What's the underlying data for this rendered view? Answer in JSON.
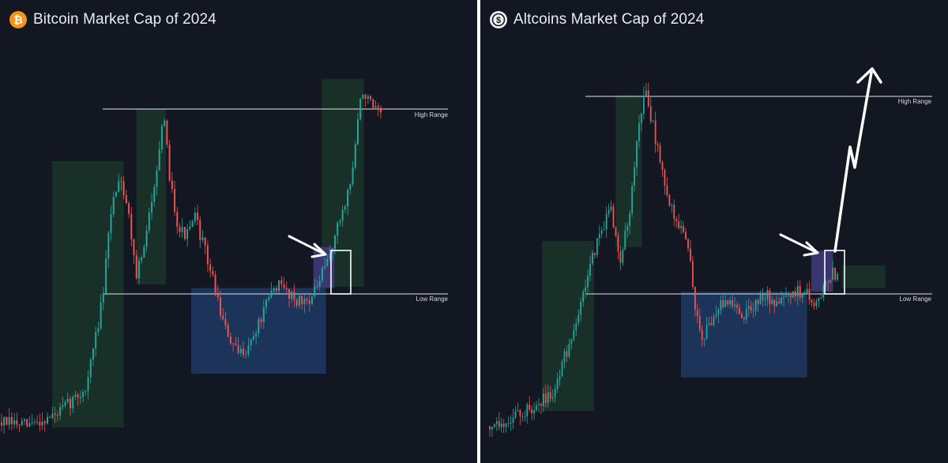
{
  "colors": {
    "background": "#131722",
    "bullish_candle": "#26a69a",
    "bearish_candle": "#ef5350",
    "impulse_zone": "#1c3a2c",
    "accumulation_zone": "#1f3a63",
    "breakout_box": "#3e3a78",
    "range_line": "#e0e3ea",
    "annotation": "#ffffff",
    "bitcoin_icon": "#f7931a"
  },
  "panels": [
    {
      "title": "Bitcoin Market Cap of 2024",
      "icon": "bitcoin-icon",
      "annotations": {
        "high_range_label": "High Range",
        "low_range_label": "Low Range"
      }
    },
    {
      "title": "Altcoins Market Cap of 2024",
      "icon": "altcoin-icon",
      "annotations": {
        "high_range_label": "High Range",
        "low_range_label": "Low Range"
      }
    }
  ],
  "chart_data": [
    {
      "type": "candlestick",
      "title": "Bitcoin Market Cap of 2024",
      "xlabel": "",
      "ylabel": "",
      "y_scale": "relative (no axis printed)",
      "grid": false,
      "path_shape": [
        [
          0,
          0.05
        ],
        [
          0.06,
          0.04
        ],
        [
          0.13,
          0.07
        ],
        [
          0.2,
          0.14
        ],
        [
          0.24,
          0.38
        ],
        [
          0.26,
          0.62
        ],
        [
          0.28,
          0.72
        ],
        [
          0.3,
          0.62
        ],
        [
          0.32,
          0.45
        ],
        [
          0.34,
          0.52
        ],
        [
          0.36,
          0.68
        ],
        [
          0.385,
          0.86
        ],
        [
          0.4,
          0.7
        ],
        [
          0.42,
          0.57
        ],
        [
          0.44,
          0.55
        ],
        [
          0.46,
          0.6
        ],
        [
          0.48,
          0.52
        ],
        [
          0.5,
          0.44
        ],
        [
          0.53,
          0.3
        ],
        [
          0.56,
          0.23
        ],
        [
          0.59,
          0.26
        ],
        [
          0.62,
          0.34
        ],
        [
          0.65,
          0.42
        ],
        [
          0.68,
          0.4
        ],
        [
          0.71,
          0.37
        ],
        [
          0.74,
          0.39
        ],
        [
          0.77,
          0.47
        ],
        [
          0.8,
          0.58
        ],
        [
          0.83,
          0.7
        ],
        [
          0.85,
          0.9
        ],
        [
          0.86,
          0.94
        ],
        [
          0.88,
          0.89
        ],
        [
          0.9,
          0.87
        ]
      ],
      "high_range": 0.84,
      "low_range": 0.41,
      "zones": {
        "impulse": [
          [
            0.12,
            0.29
          ],
          [
            0.32,
            0.39
          ],
          [
            0.76,
            0.86
          ]
        ],
        "accumulation": [
          0.45,
          0.77
        ],
        "breakout": [
          0.74,
          0.79
        ]
      }
    },
    {
      "type": "candlestick",
      "title": "Altcoins Market Cap of 2024",
      "xlabel": "",
      "ylabel": "",
      "y_scale": "relative (no axis printed)",
      "grid": false,
      "path_shape": [
        [
          0,
          0.04
        ],
        [
          0.05,
          0.06
        ],
        [
          0.1,
          0.09
        ],
        [
          0.15,
          0.14
        ],
        [
          0.2,
          0.33
        ],
        [
          0.25,
          0.55
        ],
        [
          0.28,
          0.62
        ],
        [
          0.3,
          0.48
        ],
        [
          0.32,
          0.6
        ],
        [
          0.345,
          0.88
        ],
        [
          0.36,
          0.93
        ],
        [
          0.38,
          0.82
        ],
        [
          0.4,
          0.7
        ],
        [
          0.42,
          0.62
        ],
        [
          0.44,
          0.56
        ],
        [
          0.46,
          0.5
        ],
        [
          0.47,
          0.38
        ],
        [
          0.49,
          0.27
        ],
        [
          0.52,
          0.35
        ],
        [
          0.55,
          0.38
        ],
        [
          0.58,
          0.33
        ],
        [
          0.61,
          0.37
        ],
        [
          0.64,
          0.39
        ],
        [
          0.66,
          0.36
        ],
        [
          0.69,
          0.38
        ],
        [
          0.71,
          0.4
        ],
        [
          0.73,
          0.4
        ],
        [
          0.755,
          0.36
        ],
        [
          0.77,
          0.42
        ],
        [
          0.79,
          0.45
        ],
        [
          0.8,
          0.44
        ]
      ],
      "high_range": 0.83,
      "low_range": 0.4,
      "projection": [
        [
          0.79,
          0.48
        ],
        [
          0.81,
          0.68
        ],
        [
          0.83,
          0.63
        ],
        [
          0.85,
          0.93
        ]
      ],
      "zones": {
        "impulse": [
          [
            0.12,
            0.24
          ],
          [
            0.29,
            0.35
          ],
          [
            0.81,
            0.91
          ]
        ],
        "accumulation": [
          0.44,
          0.73
        ],
        "breakout": [
          0.74,
          0.79
        ]
      }
    }
  ]
}
